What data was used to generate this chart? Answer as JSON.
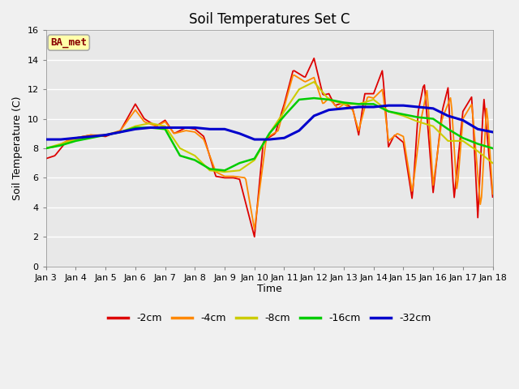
{
  "title": "Soil Temperatures Set C",
  "xlabel": "Time",
  "ylabel": "Soil Temperature (C)",
  "ylim": [
    0,
    16
  ],
  "yticks": [
    0,
    2,
    4,
    6,
    8,
    10,
    12,
    14,
    16
  ],
  "annotation": "BA_met",
  "fig_bg": "#f0f0f0",
  "plot_bg": "#e8e8e8",
  "legend_labels": [
    "-2cm",
    "-4cm",
    "-8cm",
    "-16cm",
    "-32cm"
  ],
  "legend_colors": [
    "#dd0000",
    "#ff8800",
    "#cccc00",
    "#00cc00",
    "#0000cc"
  ],
  "line_colors": {
    "2cm": "#dd0000",
    "4cm": "#ff8800",
    "8cm": "#cccc00",
    "16cm": "#00cc00",
    "32cm": "#0000cc"
  },
  "x_labels": [
    "Jan 3",
    "Jan 4",
    "Jan 5",
    "Jan 6",
    "Jan 7",
    "Jan 8",
    "Jan 9",
    "Jan 10",
    "Jan 11",
    "Jan 12",
    "Jan 13",
    "Jan 14",
    "Jan 15",
    "Jan 16",
    "Jan 17",
    "Jan 18"
  ]
}
